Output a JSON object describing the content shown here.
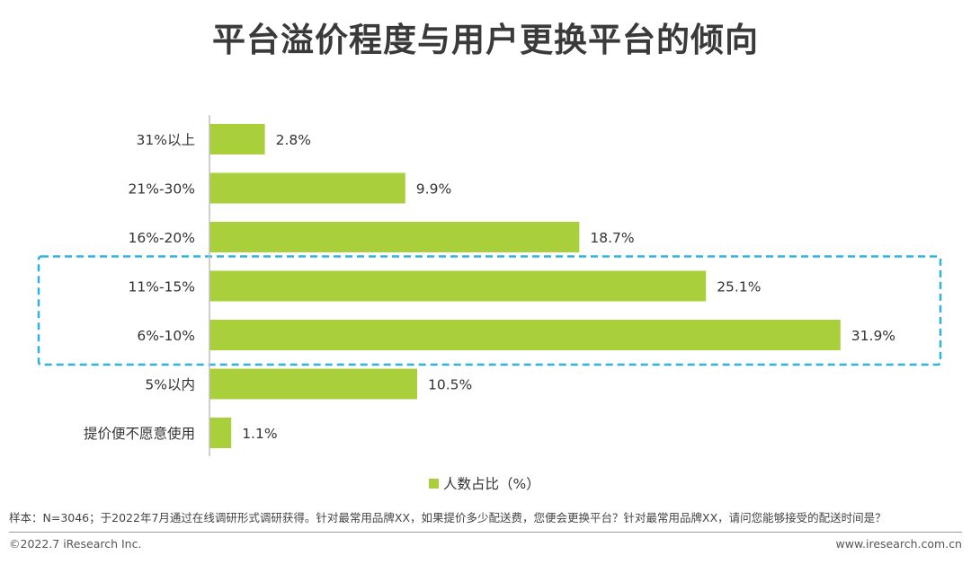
{
  "title": "平台溢价程度与用户更换平台的倾向",
  "colors": {
    "bar": "#a9cf3b",
    "highlight": "#2fb2e3",
    "axis": "#bfbfbf"
  },
  "chart_data": {
    "type": "bar",
    "orientation": "horizontal",
    "categories": [
      "31%以上",
      "21%-30%",
      "16%-20%",
      "11%-15%",
      "6%-10%",
      "5%以内",
      "提价便不愿意使用"
    ],
    "series": [
      {
        "name": "人数占比（%）",
        "values": [
          2.8,
          9.9,
          18.7,
          25.1,
          31.9,
          10.5,
          1.1
        ]
      }
    ],
    "data_labels": [
      "2.8%",
      "9.9%",
      "18.7%",
      "25.1%",
      "31.9%",
      "10.5%",
      "1.1%"
    ],
    "xlim": [
      0,
      35
    ],
    "grid": false,
    "legend_position": "bottom",
    "highlighted_categories": [
      "11%-15%",
      "6%-10%"
    ]
  },
  "note": "样本：N=3046；于2022年7月通过在线调研形式调研获得。针对最常用品牌XX，如果提价多少配送费，您便会更换平台？针对最常用品牌XX，请问您能够接受的配送时间是？",
  "footer": {
    "copyright": "©2022.7 iResearch Inc.",
    "website": "www.iresearch.com.cn"
  }
}
